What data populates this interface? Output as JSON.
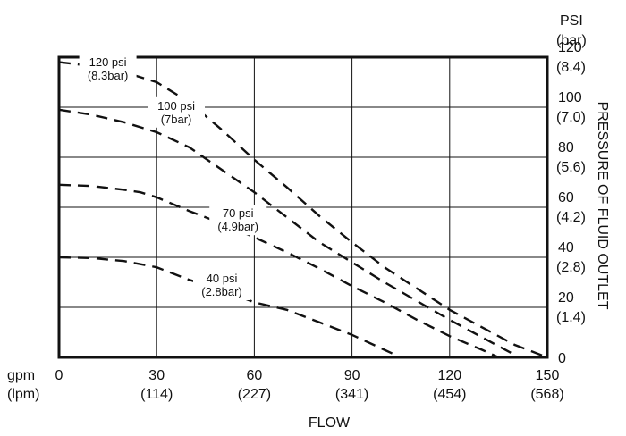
{
  "chart_data": {
    "type": "line",
    "xlabel": "FLOW",
    "ylabel": "PRESSURE OF FLUID OUTLET",
    "x_unit_primary": "gpm",
    "x_unit_secondary": "(lpm)",
    "y_unit_primary": "PSI",
    "y_unit_secondary": "(bar)",
    "xlim": [
      0,
      150
    ],
    "ylim": [
      0,
      120
    ],
    "grid": true,
    "x_ticks": [
      {
        "value": 0,
        "primary": "0",
        "secondary": ""
      },
      {
        "value": 30,
        "primary": "30",
        "secondary": "(114)"
      },
      {
        "value": 60,
        "primary": "60",
        "secondary": "(227)"
      },
      {
        "value": 90,
        "primary": "90",
        "secondary": "(341)"
      },
      {
        "value": 120,
        "primary": "120",
        "secondary": "(454)"
      },
      {
        "value": 150,
        "primary": "150",
        "secondary": "(568)"
      }
    ],
    "y_ticks": [
      {
        "value": 0,
        "primary": "0",
        "secondary": ""
      },
      {
        "value": 20,
        "primary": "20",
        "secondary": "(1.4)"
      },
      {
        "value": 40,
        "primary": "40",
        "secondary": "(2.8)"
      },
      {
        "value": 60,
        "primary": "60",
        "secondary": "(4.2)"
      },
      {
        "value": 80,
        "primary": "80",
        "secondary": "(5.6)"
      },
      {
        "value": 100,
        "primary": "100",
        "secondary": "(7.0)"
      },
      {
        "value": 120,
        "primary": "120",
        "secondary": "(8.4)"
      }
    ],
    "series": [
      {
        "name": "120 psi",
        "label_line1": "120 psi",
        "label_line2": "(8.3bar)",
        "x": [
          0,
          10,
          20,
          30,
          40,
          50,
          60,
          70,
          80,
          90,
          100,
          110,
          120,
          130,
          140,
          150
        ],
        "y": [
          118,
          116.5,
          114,
          110,
          102,
          91,
          79,
          68,
          56.5,
          46,
          36,
          27.5,
          19,
          12,
          5,
          0
        ]
      },
      {
        "name": "100 psi",
        "label_line1": "100 psi",
        "label_line2": "(7bar)",
        "x": [
          0,
          10,
          20,
          30,
          40,
          50,
          60,
          70,
          80,
          90,
          100,
          110,
          120,
          130,
          140
        ],
        "y": [
          99,
          97,
          94,
          90,
          84,
          75,
          66,
          56,
          46,
          38,
          30,
          22.5,
          15,
          8,
          1
        ]
      },
      {
        "name": "70 psi",
        "label_line1": "70 psi",
        "label_line2": "(4.9bar)",
        "x": [
          0,
          10,
          20,
          25,
          30,
          40,
          50,
          60,
          70,
          80,
          90,
          100,
          110,
          120,
          130,
          135
        ],
        "y": [
          69,
          68.5,
          67,
          66,
          64,
          58.5,
          53.5,
          48,
          42,
          35.5,
          28.5,
          22,
          15,
          8.5,
          3,
          0
        ]
      },
      {
        "name": "40 psi",
        "label_line1": "40 psi",
        "label_line2": "(2.8bar)",
        "x": [
          0,
          10,
          20,
          30,
          40,
          50,
          60,
          70,
          80,
          90,
          100,
          105
        ],
        "y": [
          40,
          39.7,
          38.5,
          36,
          31,
          27,
          22,
          19,
          14,
          9,
          3,
          0
        ]
      }
    ],
    "annotation_anchors": [
      {
        "x": 15,
        "y": 116.5
      },
      {
        "x": 36,
        "y": 99
      },
      {
        "x": 55,
        "y": 56
      },
      {
        "x": 50,
        "y": 30
      }
    ]
  }
}
